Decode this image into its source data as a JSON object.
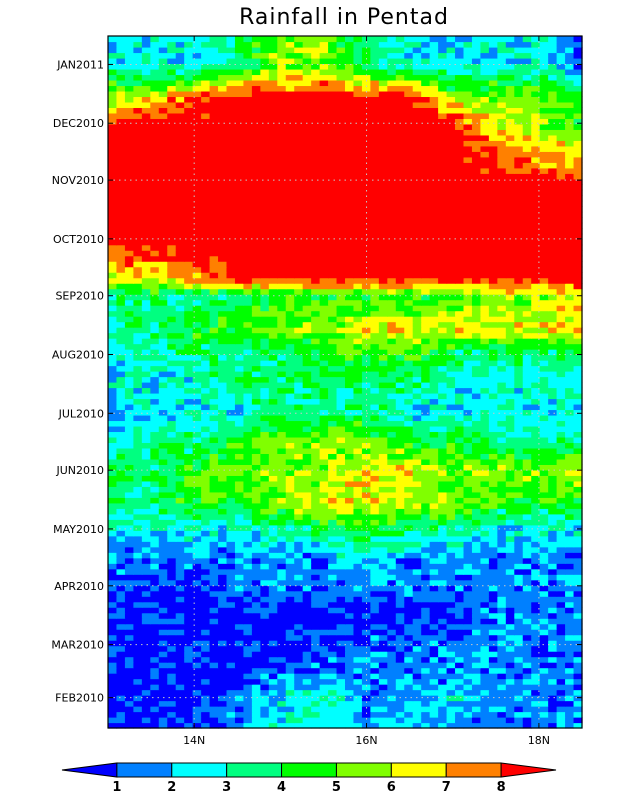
{
  "chart_data": {
    "type": "heatmap",
    "title": "Rainfall in Pentad",
    "xlabel": "",
    "ylabel": "",
    "x_axis": {
      "range": [
        13.0,
        18.5
      ],
      "ticks": [
        {
          "value": 14,
          "label": "14N"
        },
        {
          "value": 16,
          "label": "16N"
        },
        {
          "value": 18,
          "label": "18N"
        }
      ]
    },
    "y_axis": {
      "range_days_span": 365,
      "start": "2010-01-16",
      "end": "2011-01-16",
      "ticks": [
        {
          "date": "2010-02-01",
          "label": "FEB2010"
        },
        {
          "date": "2010-03-01",
          "label": "MAR2010"
        },
        {
          "date": "2010-04-01",
          "label": "APR2010"
        },
        {
          "date": "2010-05-01",
          "label": "MAY2010"
        },
        {
          "date": "2010-06-01",
          "label": "JUN2010"
        },
        {
          "date": "2010-07-01",
          "label": "JUL2010"
        },
        {
          "date": "2010-08-01",
          "label": "AUG2010"
        },
        {
          "date": "2010-09-01",
          "label": "SEP2010"
        },
        {
          "date": "2010-10-01",
          "label": "OCT2010"
        },
        {
          "date": "2010-11-01",
          "label": "NOV2010"
        },
        {
          "date": "2010-12-01",
          "label": "DEC2010"
        },
        {
          "date": "2011-01-01",
          "label": "JAN2011"
        }
      ]
    },
    "grid": true,
    "colorbar": {
      "placement": "bottom",
      "levels": [
        "1",
        "2",
        "3",
        "4",
        "5",
        "6",
        "7",
        "8"
      ],
      "colors": [
        "#0000ff",
        "#0080ff",
        "#00ffff",
        "#00ff80",
        "#00ff00",
        "#80ff00",
        "#ffff00",
        "#ff8000",
        "#ff0000"
      ]
    },
    "value_profile": {
      "latitudes": [
        13.0,
        13.5,
        14.0,
        14.5,
        15.0,
        15.5,
        16.0,
        16.5,
        17.0,
        17.5,
        18.0,
        18.5
      ],
      "rows": [
        {
          "date": "2010-01-16",
          "values": [
            2,
            1,
            1,
            2,
            3,
            3,
            2,
            3,
            2,
            2,
            2,
            2
          ]
        },
        {
          "date": "2010-02-01",
          "values": [
            1,
            1,
            1,
            2,
            3,
            4,
            2,
            2,
            3,
            2,
            2,
            2
          ]
        },
        {
          "date": "2010-02-15",
          "values": [
            1,
            1,
            1,
            1,
            2,
            2,
            2,
            2,
            2,
            2,
            2,
            2
          ]
        },
        {
          "date": "2010-03-01",
          "values": [
            1,
            1,
            1,
            1,
            1,
            1,
            2,
            2,
            2,
            2,
            2,
            2
          ]
        },
        {
          "date": "2010-03-15",
          "values": [
            1,
            1,
            1,
            1,
            1,
            1,
            1,
            1,
            1,
            2,
            2,
            2
          ]
        },
        {
          "date": "2010-04-01",
          "values": [
            2,
            1,
            1,
            2,
            2,
            2,
            2,
            2,
            2,
            2,
            2,
            2
          ]
        },
        {
          "date": "2010-04-15",
          "values": [
            2,
            2,
            2,
            2,
            2,
            2,
            3,
            2,
            2,
            2,
            2,
            2
          ]
        },
        {
          "date": "2010-05-01",
          "values": [
            3,
            3,
            3,
            3,
            4,
            4,
            5,
            4,
            4,
            3,
            3,
            3
          ]
        },
        {
          "date": "2010-05-15",
          "values": [
            4,
            4,
            5,
            5,
            6,
            7,
            7,
            6,
            6,
            5,
            5,
            5
          ]
        },
        {
          "date": "2010-06-01",
          "values": [
            5,
            4,
            5,
            6,
            6,
            6,
            7,
            7,
            6,
            6,
            6,
            7
          ]
        },
        {
          "date": "2010-06-15",
          "values": [
            3,
            4,
            4,
            5,
            6,
            6,
            6,
            5,
            5,
            4,
            4,
            4
          ]
        },
        {
          "date": "2010-07-01",
          "values": [
            2,
            3,
            3,
            3,
            4,
            4,
            4,
            3,
            3,
            3,
            3,
            3
          ]
        },
        {
          "date": "2010-07-15",
          "values": [
            3,
            3,
            3,
            4,
            4,
            4,
            4,
            4,
            3,
            3,
            3,
            3
          ]
        },
        {
          "date": "2010-08-01",
          "values": [
            3,
            3,
            4,
            4,
            4,
            5,
            5,
            5,
            4,
            4,
            4,
            4
          ]
        },
        {
          "date": "2010-08-15",
          "values": [
            4,
            4,
            5,
            5,
            6,
            6,
            7,
            7,
            7,
            7,
            7,
            7
          ]
        },
        {
          "date": "2010-09-01",
          "values": [
            4,
            4,
            4,
            4,
            5,
            5,
            5,
            5,
            5,
            6,
            6,
            7
          ]
        },
        {
          "date": "2010-09-10",
          "values": [
            7,
            7,
            8,
            9,
            9,
            9,
            9,
            9,
            9,
            9,
            9,
            9
          ]
        },
        {
          "date": "2010-10-01",
          "values": [
            9,
            9,
            9,
            9,
            9,
            9,
            9,
            9,
            9,
            9,
            9,
            9
          ]
        },
        {
          "date": "2010-11-01",
          "values": [
            9,
            9,
            9,
            9,
            9,
            9,
            9,
            9,
            9,
            9,
            9,
            9
          ]
        },
        {
          "date": "2010-12-01",
          "values": [
            9,
            9,
            9,
            9,
            9,
            9,
            9,
            9,
            9,
            7,
            6,
            5
          ]
        },
        {
          "date": "2010-12-15",
          "values": [
            6,
            7,
            8,
            9,
            9,
            9,
            9,
            9,
            6,
            6,
            6,
            5
          ]
        },
        {
          "date": "2011-01-01",
          "values": [
            3,
            3,
            3,
            4,
            6,
            6,
            4,
            3,
            3,
            3,
            3,
            2
          ]
        }
      ]
    }
  }
}
